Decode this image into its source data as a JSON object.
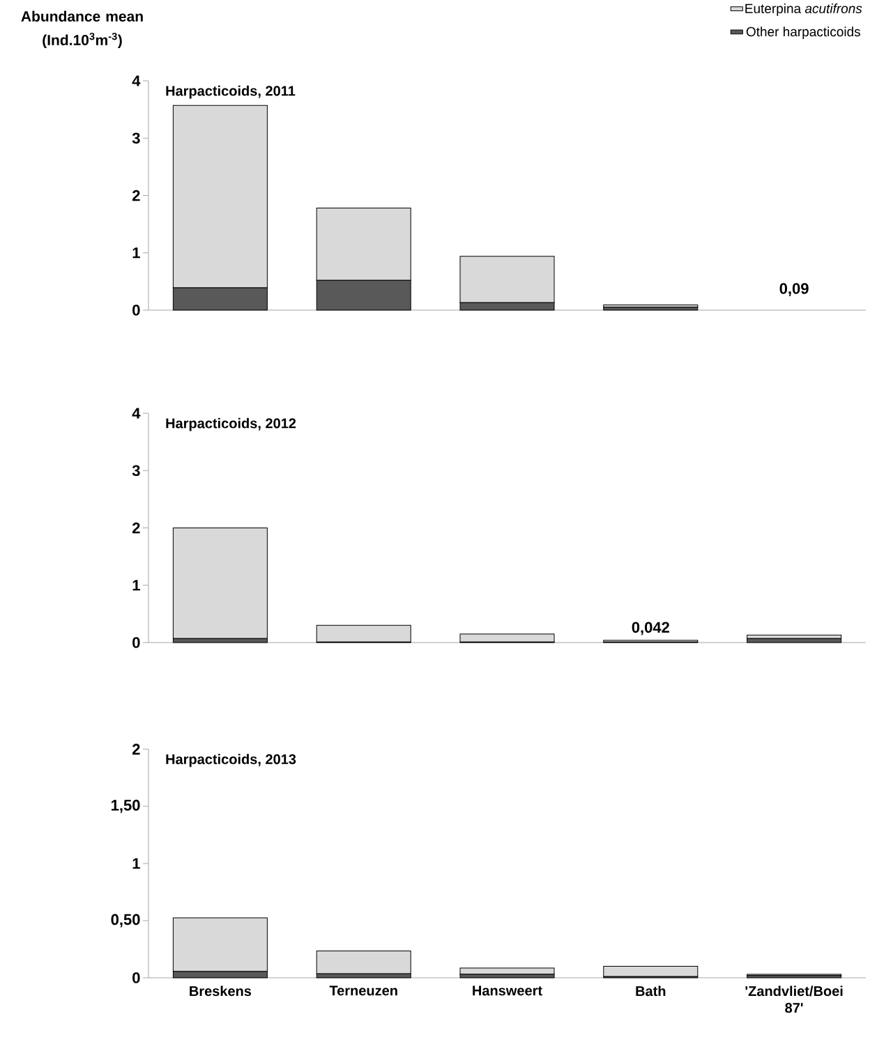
{
  "chart_data": [
    {
      "type": "bar",
      "stacked": true,
      "title": "Harpacticoids, 2011",
      "ylabel": "Abundance mean (Ind.10$^{3}$m$^{-3}$)",
      "legend": "top right",
      "categories": [
        "Breskens",
        "Terneuzen",
        "Hansweert",
        "Bath",
        "'Zandvliet/Boei 87'"
      ],
      "series": [
        {
          "name": "Other harpacticoids",
          "color": "#595959",
          "values": [
            0.39,
            0.52,
            0.13,
            0.05,
            null
          ]
        },
        {
          "name": "Euterpina *acutifrons*",
          "color": "#d9d9d9",
          "values": [
            3.18,
            1.26,
            0.81,
            0.04,
            null
          ]
        }
      ],
      "ylim": [
        0,
        4
      ],
      "yticks": [
        0,
        1,
        2,
        3,
        4
      ],
      "tick_labels": "y",
      "annotations": [
        "0,09"
      ]
    },
    {
      "type": "bar",
      "stacked": true,
      "title": "Harpacticoids, 2012",
      "categories": [
        "Breskens",
        "Terneuzen",
        "Hansweert",
        "Bath",
        "'Zandvliet/Boei 87'"
      ],
      "series": [
        {
          "color": "#595959",
          "values": [
            0.07,
            0.01,
            0.01,
            0.01,
            0.07
          ]
        },
        {
          "color": "#d9d9d9",
          "values": [
            1.93,
            0.29,
            0.14,
            0.03,
            0.06
          ]
        }
      ],
      "ylim": [
        0,
        4
      ],
      "yticks": [
        0,
        1,
        2,
        3,
        4
      ],
      "tick_labels": "y",
      "annotations": [
        {
          "text": "0,042",
          "x": "Bath",
          "y": 0.04
        }
      ]
    },
    {
      "type": "bar",
      "stacked": true,
      "title": "Harpacticoids, 2013",
      "categories": [
        "Breskens",
        "Terneuzen",
        "Hansweert",
        "Bath",
        "'Zandvliet/Boei 87'"
      ],
      "series": [
        {
          "color": "#595959",
          "values": [
            0.055,
            0.035,
            0.03,
            0.01,
            0.02
          ]
        },
        {
          "color": "#d9d9d9",
          "values": [
            0.47,
            0.2,
            0.055,
            0.09,
            0.01
          ]
        }
      ],
      "ylim": [
        0,
        2
      ],
      "yticks": [
        0,
        {
          "value": 0.5,
          "label": "0,50"
        },
        1,
        {
          "value": 1.5,
          "label": "1,50"
        },
        2
      ]
    }
  ]
}
